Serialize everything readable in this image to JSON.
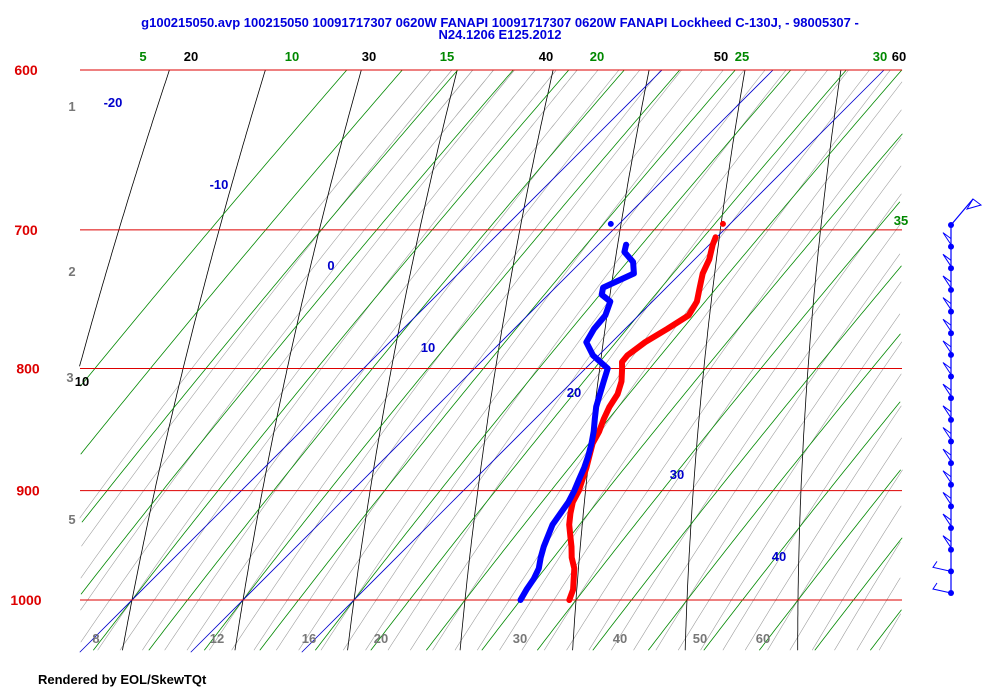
{
  "title_line1": "g100215050.avp 100215050 10091717307 0620W FANAPI 10091717307 0620W FANAPI Lockheed C-130J, - 98005307 -",
  "title_line2": "N24.1206 E125.2012",
  "footer": "Rendered by EOL/SkewTQt",
  "colors": {
    "pressure": "#dd0000",
    "isotherm": "#0000cc",
    "mixing_ratio": "#008800",
    "dry_adiabat": "#000000",
    "moist_adiabat": "#999999",
    "temperature": "#ff0000",
    "dewpoint": "#0000ff",
    "wind": "#0000ff"
  },
  "chart_data": {
    "type": "skew-t",
    "pressure_levels": [
      600,
      700,
      800,
      900,
      1000
    ],
    "top_temperature_labels": [
      "20",
      "30",
      "40",
      "50",
      "60"
    ],
    "right_temperature_label": "10",
    "mixing_ratio_labels": [
      "5",
      "10",
      "15",
      "20",
      "25",
      "30",
      "35"
    ],
    "isotherm_labels": [
      "-20",
      "-10",
      "0",
      "10",
      "20",
      "30",
      "40"
    ],
    "bottom_gray_labels": [
      "8",
      "12",
      "16",
      "20",
      "30",
      "40",
      "50",
      "60"
    ],
    "left_gray_labels": [
      "1",
      "2",
      "3",
      "5"
    ],
    "temperature_profile": [
      {
        "p": 1000,
        "t": 29.4
      },
      {
        "p": 990,
        "t": 28.8
      },
      {
        "p": 980,
        "t": 27.9
      },
      {
        "p": 970,
        "t": 27.0
      },
      {
        "p": 960,
        "t": 25.8
      },
      {
        "p": 950,
        "t": 24.8
      },
      {
        "p": 940,
        "t": 23.7
      },
      {
        "p": 930,
        "t": 22.6
      },
      {
        "p": 920,
        "t": 21.7
      },
      {
        "p": 910,
        "t": 20.9
      },
      {
        "p": 900,
        "t": 20.4
      },
      {
        "p": 890,
        "t": 19.7
      },
      {
        "p": 880,
        "t": 19.0
      },
      {
        "p": 870,
        "t": 18.2
      },
      {
        "p": 860,
        "t": 17.4
      },
      {
        "p": 850,
        "t": 16.9
      },
      {
        "p": 840,
        "t": 16.2
      },
      {
        "p": 830,
        "t": 15.6
      },
      {
        "p": 820,
        "t": 15.2
      },
      {
        "p": 810,
        "t": 14.4
      },
      {
        "p": 800,
        "t": 13.3
      },
      {
        "p": 795,
        "t": 12.7
      },
      {
        "p": 790,
        "t": 12.6
      },
      {
        "p": 780,
        "t": 13.0
      },
      {
        "p": 770,
        "t": 13.8
      },
      {
        "p": 760,
        "t": 14.5
      },
      {
        "p": 750,
        "t": 14.0
      },
      {
        "p": 740,
        "t": 13.0
      },
      {
        "p": 730,
        "t": 12.0
      },
      {
        "p": 720,
        "t": 11.3
      },
      {
        "p": 710,
        "t": 10.3
      },
      {
        "p": 705,
        "t": 9.9
      }
    ],
    "dewpoint_profile": [
      {
        "p": 1000,
        "t": 25.0
      },
      {
        "p": 990,
        "t": 24.6
      },
      {
        "p": 980,
        "t": 24.3
      },
      {
        "p": 970,
        "t": 23.8
      },
      {
        "p": 960,
        "t": 23.0
      },
      {
        "p": 950,
        "t": 22.3
      },
      {
        "p": 940,
        "t": 21.7
      },
      {
        "p": 930,
        "t": 21.1
      },
      {
        "p": 920,
        "t": 20.8
      },
      {
        "p": 910,
        "t": 20.5
      },
      {
        "p": 900,
        "t": 20.0
      },
      {
        "p": 890,
        "t": 19.4
      },
      {
        "p": 880,
        "t": 18.8
      },
      {
        "p": 870,
        "t": 18.1
      },
      {
        "p": 860,
        "t": 17.3
      },
      {
        "p": 850,
        "t": 16.4
      },
      {
        "p": 840,
        "t": 15.4
      },
      {
        "p": 830,
        "t": 14.4
      },
      {
        "p": 820,
        "t": 13.6
      },
      {
        "p": 810,
        "t": 12.8
      },
      {
        "p": 800,
        "t": 12.0
      },
      {
        "p": 790,
        "t": 9.5
      },
      {
        "p": 780,
        "t": 7.7
      },
      {
        "p": 770,
        "t": 7.2
      },
      {
        "p": 760,
        "t": 7.0
      },
      {
        "p": 750,
        "t": 6.2
      },
      {
        "p": 745,
        "t": 4.8
      },
      {
        "p": 740,
        "t": 4.3
      },
      {
        "p": 730,
        "t": 5.8
      },
      {
        "p": 722,
        "t": 4.7
      },
      {
        "p": 715,
        "t": 3.0
      },
      {
        "p": 710,
        "t": 2.5
      }
    ],
    "wind_levels": [
      700,
      710,
      720,
      730,
      750,
      770,
      790,
      810,
      830,
      850,
      870,
      890,
      910,
      930,
      950,
      960,
      975,
      1000
    ],
    "xlim": [
      -10,
      72
    ],
    "ylim": [
      1050,
      600
    ]
  }
}
